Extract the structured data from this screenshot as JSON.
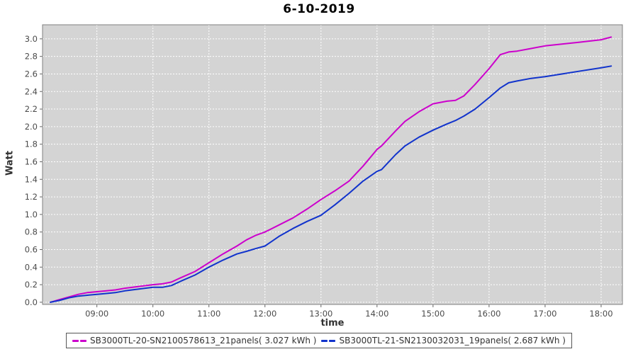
{
  "title": "6-10-2019",
  "chart_data": {
    "type": "line",
    "title": "6-10-2019",
    "xlabel": "time",
    "ylabel": "Watt",
    "x_unit": "hour_of_day",
    "xlim": [
      8.03,
      18.38
    ],
    "ylim": [
      -0.025,
      3.16
    ],
    "grid": true,
    "legend_position": "bottom",
    "plot_bg_color": "#d4d4d4",
    "grid_color": "#ffffff",
    "plot_border_color": "#7f7f7f",
    "tick_color": "#666666",
    "tick_label_color": "#4a4a4a",
    "x_ticks": [
      {
        "value": 9,
        "label": "09:00"
      },
      {
        "value": 10,
        "label": "10:00"
      },
      {
        "value": 11,
        "label": "11:00"
      },
      {
        "value": 12,
        "label": "12:00"
      },
      {
        "value": 13,
        "label": "13:00"
      },
      {
        "value": 14,
        "label": "14:00"
      },
      {
        "value": 15,
        "label": "15:00"
      },
      {
        "value": 16,
        "label": "16:00"
      },
      {
        "value": 17,
        "label": "17:00"
      },
      {
        "value": 18,
        "label": "18:00"
      }
    ],
    "y_ticks": [
      {
        "value": 0.0,
        "label": "0.0"
      },
      {
        "value": 0.2,
        "label": "0.2"
      },
      {
        "value": 0.4,
        "label": "0.4"
      },
      {
        "value": 0.6,
        "label": "0.6"
      },
      {
        "value": 0.8,
        "label": "0.8"
      },
      {
        "value": 1.0,
        "label": "1.0"
      },
      {
        "value": 1.2,
        "label": "1.2"
      },
      {
        "value": 1.4,
        "label": "1.4"
      },
      {
        "value": 1.6,
        "label": "1.6"
      },
      {
        "value": 1.8,
        "label": "1.8"
      },
      {
        "value": 2.0,
        "label": "2.0"
      },
      {
        "value": 2.2,
        "label": "2.2"
      },
      {
        "value": 2.4,
        "label": "2.4"
      },
      {
        "value": 2.6,
        "label": "2.6"
      },
      {
        "value": 2.8,
        "label": "2.8"
      },
      {
        "value": 3.0,
        "label": "3.0"
      }
    ],
    "x": [
      8.17,
      8.33,
      8.5,
      8.67,
      8.83,
      9.0,
      9.17,
      9.33,
      9.5,
      9.75,
      10.0,
      10.17,
      10.33,
      10.5,
      10.75,
      11.0,
      11.25,
      11.5,
      11.67,
      11.83,
      12.0,
      12.25,
      12.5,
      12.75,
      13.0,
      13.25,
      13.5,
      13.75,
      14.0,
      14.08,
      14.33,
      14.5,
      14.75,
      15.0,
      15.25,
      15.4,
      15.55,
      15.75,
      16.0,
      16.2,
      16.35,
      16.5,
      16.75,
      17.0,
      17.3,
      17.6,
      18.0,
      18.18
    ],
    "series": [
      {
        "name": "SB3000TL-20-SN2100578613_21panels( 3.027 kWh )",
        "color": "#cc00cc",
        "total_kwh": "3.027",
        "values": [
          0.0,
          0.03,
          0.06,
          0.09,
          0.11,
          0.12,
          0.13,
          0.14,
          0.16,
          0.18,
          0.2,
          0.21,
          0.23,
          0.28,
          0.35,
          0.45,
          0.55,
          0.64,
          0.71,
          0.76,
          0.8,
          0.88,
          0.96,
          1.06,
          1.17,
          1.27,
          1.38,
          1.55,
          1.74,
          1.78,
          1.95,
          2.06,
          2.17,
          2.26,
          2.29,
          2.3,
          2.35,
          2.48,
          2.66,
          2.82,
          2.85,
          2.86,
          2.89,
          2.92,
          2.94,
          2.96,
          2.99,
          3.02
        ]
      },
      {
        "name": "SB3000TL-21-SN2130032031_19panels( 2.687 kWh )",
        "color": "#1133cc",
        "total_kwh": "2.687",
        "values": [
          0.0,
          0.02,
          0.05,
          0.07,
          0.08,
          0.09,
          0.1,
          0.11,
          0.13,
          0.15,
          0.17,
          0.17,
          0.19,
          0.24,
          0.31,
          0.4,
          0.48,
          0.55,
          0.58,
          0.61,
          0.64,
          0.75,
          0.84,
          0.92,
          0.99,
          1.11,
          1.24,
          1.38,
          1.49,
          1.51,
          1.68,
          1.78,
          1.88,
          1.96,
          2.03,
          2.07,
          2.12,
          2.2,
          2.33,
          2.44,
          2.5,
          2.52,
          2.55,
          2.57,
          2.6,
          2.63,
          2.67,
          2.69
        ]
      }
    ]
  }
}
